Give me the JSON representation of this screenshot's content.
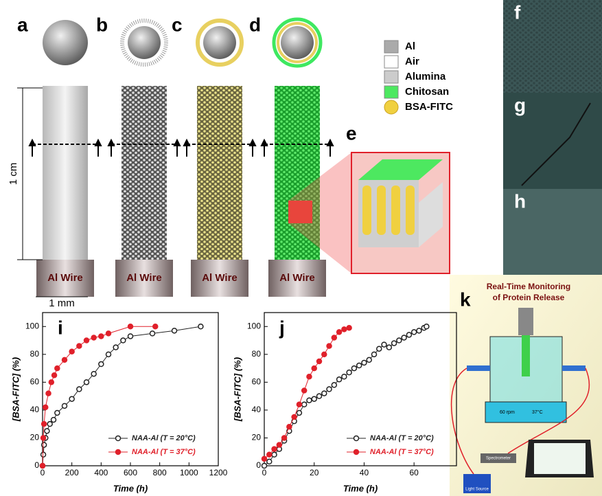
{
  "figure": {
    "panels": [
      "a",
      "b",
      "c",
      "d",
      "e",
      "f",
      "g",
      "h",
      "k"
    ],
    "wire_labels": [
      "Al Wire",
      "Al Wire",
      "Al Wire",
      "Al Wire"
    ],
    "dimension_height": "1 cm",
    "dimension_width": "1 mm",
    "legend": [
      "Al",
      "Air",
      "Alumina",
      "Chitosan",
      "BSA-FITC"
    ],
    "k_title": [
      "Real-Time Monitoring",
      "of Protein Release"
    ],
    "k_labels": [
      "60 rpm",
      "37°C",
      "Spectrometer",
      "Light Source"
    ]
  },
  "chart_data": [
    {
      "type": "line",
      "label": "i",
      "x_label": "Time (h)",
      "y_label": "[BSA-FITC] (%)",
      "xlim": [
        0,
        1200
      ],
      "xticks": [
        0,
        200,
        400,
        600,
        800,
        1000,
        1200
      ],
      "ylim": [
        0,
        110
      ],
      "yticks": [
        0,
        20,
        40,
        60,
        80,
        100
      ],
      "legend": "lower right",
      "series": [
        {
          "name": "NAA-Al (T = 20°C)",
          "color": "#222222",
          "x": [
            0,
            5,
            10,
            20,
            30,
            50,
            75,
            100,
            150,
            200,
            250,
            300,
            350,
            400,
            450,
            500,
            550,
            600,
            750,
            900,
            1080
          ],
          "values": [
            0,
            8,
            15,
            20,
            25,
            30,
            33,
            38,
            43,
            48,
            55,
            60,
            66,
            73,
            80,
            85,
            90,
            93,
            95,
            97,
            100
          ]
        },
        {
          "name": "NAA-Al (T = 37°C)",
          "color": "#e0202a",
          "x": [
            0,
            5,
            10,
            20,
            40,
            60,
            80,
            100,
            150,
            200,
            250,
            300,
            350,
            400,
            450,
            600,
            770
          ],
          "values": [
            0,
            20,
            30,
            42,
            52,
            60,
            65,
            70,
            76,
            82,
            86,
            90,
            92,
            93,
            95,
            100,
            100
          ]
        }
      ]
    },
    {
      "type": "line",
      "label": "j",
      "x_label": "Time (h)",
      "y_label": "[BSA-FITC] (%)",
      "xlim": [
        0,
        77
      ],
      "xticks": [
        0,
        20,
        40,
        60
      ],
      "ylim": [
        0,
        110
      ],
      "yticks": [
        0,
        20,
        40,
        60,
        80,
        100
      ],
      "legend": "lower right",
      "series": [
        {
          "name": "NAA-Al (T = 20°C)",
          "color": "#222222",
          "x": [
            0,
            2,
            4,
            6,
            8,
            10,
            12,
            14,
            16,
            18,
            20,
            22,
            24,
            26,
            28,
            30,
            32,
            34,
            36,
            38,
            40,
            42,
            44,
            46,
            48,
            50,
            52,
            54,
            56,
            58,
            60,
            62,
            64,
            65
          ],
          "values": [
            0,
            3,
            8,
            12,
            18,
            25,
            32,
            38,
            44,
            47,
            48,
            50,
            52,
            55,
            58,
            62,
            64,
            67,
            70,
            72,
            74,
            76,
            80,
            84,
            87,
            85,
            88,
            90,
            92,
            94,
            96,
            97,
            99,
            100
          ]
        },
        {
          "name": "NAA-Al (T = 37°C)",
          "color": "#e0202a",
          "x": [
            0,
            2,
            4,
            6,
            8,
            10,
            12,
            14,
            16,
            18,
            20,
            22,
            24,
            26,
            28,
            30,
            32,
            34
          ],
          "values": [
            5,
            8,
            12,
            15,
            20,
            28,
            35,
            44,
            54,
            64,
            70,
            75,
            80,
            86,
            92,
            96,
            98,
            99
          ]
        }
      ]
    }
  ]
}
